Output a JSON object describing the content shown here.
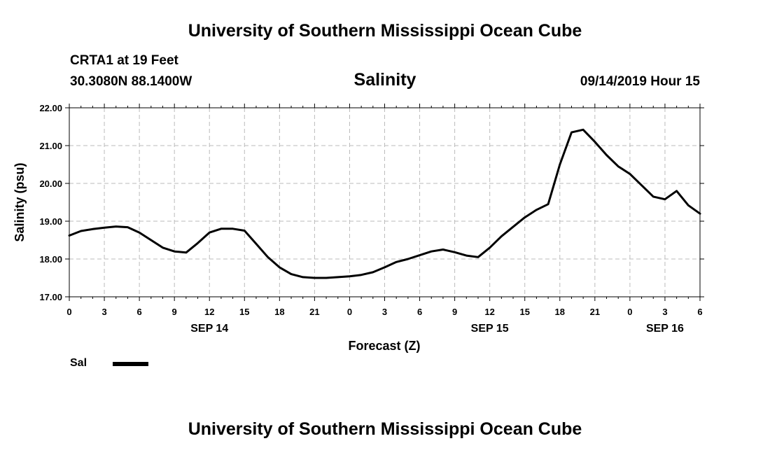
{
  "header": {
    "title": "University of Southern Mississippi Ocean Cube",
    "station": "CRTA1 at 19 Feet",
    "coords": "30.3080N 88.1400W",
    "variable": "Salinity",
    "datetime": "09/14/2019 Hour 15"
  },
  "footer": {
    "title": "University of Southern Mississippi Ocean Cube"
  },
  "legend": {
    "label": "Sal",
    "color": "#000000"
  },
  "chart_data": {
    "type": "line",
    "title": "Salinity",
    "xlabel": "Forecast (Z)",
    "ylabel": "Salinity (psu)",
    "ylim": [
      17.0,
      22.0
    ],
    "yticks": [
      "17.00",
      "18.00",
      "19.00",
      "20.00",
      "21.00",
      "22.00"
    ],
    "xlim_hours": [
      0,
      54
    ],
    "xtick_hours": [
      0,
      3,
      6,
      9,
      12,
      15,
      18,
      21,
      24,
      27,
      30,
      33,
      36,
      39,
      42,
      45,
      48,
      51,
      54
    ],
    "xtick_labels": [
      "0",
      "3",
      "6",
      "9",
      "12",
      "15",
      "18",
      "21",
      "0",
      "3",
      "6",
      "9",
      "12",
      "15",
      "18",
      "21",
      "0",
      "3",
      "6"
    ],
    "date_labels": [
      {
        "hour": 12,
        "label": "SEP 14"
      },
      {
        "hour": 36,
        "label": "SEP 15"
      },
      {
        "hour": 51,
        "label": "SEP 16"
      }
    ],
    "grid": true,
    "series": [
      {
        "name": "Sal",
        "color": "#000000",
        "x": [
          0,
          1,
          2,
          3,
          4,
          5,
          6,
          7,
          8,
          9,
          10,
          11,
          12,
          13,
          14,
          15,
          16,
          17,
          18,
          19,
          20,
          21,
          22,
          23,
          24,
          25,
          26,
          27,
          28,
          29,
          30,
          31,
          32,
          33,
          34,
          35,
          36,
          37,
          38,
          39,
          40,
          41,
          42,
          43,
          44,
          45,
          46,
          47,
          48,
          49,
          50,
          51,
          52,
          53,
          54
        ],
        "y": [
          18.62,
          18.74,
          18.79,
          18.83,
          18.86,
          18.84,
          18.7,
          18.5,
          18.3,
          18.2,
          18.17,
          18.42,
          18.7,
          18.8,
          18.8,
          18.75,
          18.4,
          18.05,
          17.78,
          17.6,
          17.52,
          17.5,
          17.5,
          17.52,
          17.54,
          17.58,
          17.65,
          17.78,
          17.92,
          18.0,
          18.1,
          18.2,
          18.25,
          18.18,
          18.09,
          18.05,
          18.3,
          18.6,
          18.85,
          19.1,
          19.3,
          19.45,
          20.5,
          21.35,
          21.42,
          21.1,
          20.75,
          20.45,
          20.25,
          19.95,
          19.65,
          19.58,
          19.8,
          19.42,
          19.2
        ]
      }
    ]
  }
}
